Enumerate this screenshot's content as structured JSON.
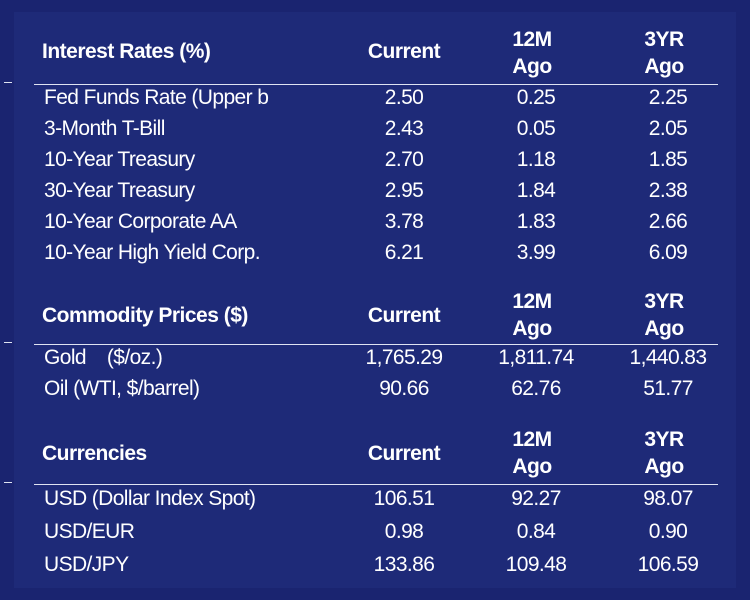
{
  "columns": {
    "current": "Current",
    "m12_line1": "12M",
    "m12_line2": "Ago",
    "y3_line1": "3YR",
    "y3_line2": "Ago"
  },
  "interest_rates": {
    "title": "Interest Rates (%)",
    "rows": [
      {
        "label": "Fed Funds Rate (Upper b",
        "current": "2.50",
        "m12": "0.25",
        "y3": "2.25"
      },
      {
        "label": "3-Month T-Bill",
        "current": "2.43",
        "m12": "0.05",
        "y3": "2.05"
      },
      {
        "label": "10-Year Treasury",
        "current": "2.70",
        "m12": "1.18",
        "y3": "1.85"
      },
      {
        "label": "30-Year Treasury",
        "current": "2.95",
        "m12": "1.84",
        "y3": "2.38"
      },
      {
        "label": "10-Year Corporate AA",
        "current": "3.78",
        "m12": "1.83",
        "y3": "2.66"
      },
      {
        "label": "10-Year High Yield Corp.",
        "current": "6.21",
        "m12": "3.99",
        "y3": "6.09"
      }
    ]
  },
  "commodities": {
    "title": "Commodity Prices ($)",
    "rows": [
      {
        "label": "Gold    ($/oz.)",
        "current": "1,765.29",
        "m12": "1,811.74",
        "y3": "1,440.83"
      },
      {
        "label": "Oil (WTI, $/barrel)",
        "current": "90.66",
        "m12": "62.76",
        "y3": "51.77"
      }
    ]
  },
  "currencies": {
    "title": "Currencies",
    "rows": [
      {
        "label": "USD (Dollar Index Spot)",
        "current": "106.51",
        "m12": "92.27",
        "y3": "98.07"
      },
      {
        "label": "USD/EUR",
        "current": "0.98",
        "m12": "0.84",
        "y3": "0.90"
      },
      {
        "label": "USD/JPY",
        "current": "133.86",
        "m12": "109.48",
        "y3": "106.59"
      }
    ]
  }
}
